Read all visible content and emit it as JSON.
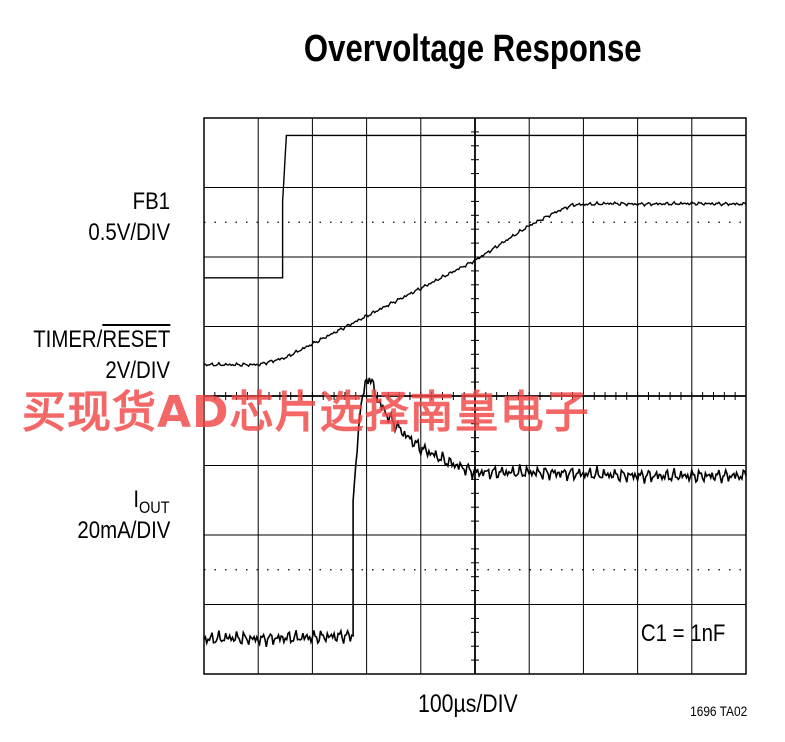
{
  "title": "Overvoltage Response",
  "watermark_text": "买现货AD芯片选择南皇电子",
  "figure_code": "1696 TA02",
  "note": "C1 = 1nF",
  "chart_data": {
    "type": "line",
    "title": "Overvoltage Response",
    "xlabel": "100µs/DIV",
    "x_divisions": 10,
    "y_divisions": 8,
    "grid": true,
    "series": [
      {
        "name": "FB1",
        "scale": "0.5V/DIV",
        "x": [
          0,
          1.45,
          1.45,
          1.52,
          10
        ],
        "y": [
          5.7,
          5.7,
          6.8,
          7.75,
          7.75
        ]
      },
      {
        "name": "TIMER/RESET",
        "scale": "2V/DIV",
        "x": [
          0,
          0.5,
          1.0,
          1.5,
          2.0,
          2.5,
          3.0,
          3.5,
          4.0,
          4.5,
          5.0,
          5.5,
          6.0,
          6.5,
          6.8,
          7.5,
          8.0,
          9.0,
          10
        ],
        "y": [
          4.45,
          4.45,
          4.45,
          4.55,
          4.75,
          4.95,
          5.15,
          5.35,
          5.55,
          5.75,
          5.95,
          6.2,
          6.45,
          6.65,
          6.75,
          6.77,
          6.76,
          6.77,
          6.76
        ]
      },
      {
        "name": "IOUT",
        "scale": "20mA/DIV",
        "x": [
          0,
          0.5,
          1.0,
          1.5,
          2.0,
          2.75,
          2.75,
          2.9,
          3.05,
          3.2,
          3.4,
          3.7,
          4.0,
          4.5,
          5.0,
          5.5,
          6.0,
          7.0,
          8.0,
          9.0,
          10
        ],
        "y": [
          0.5,
          0.52,
          0.5,
          0.52,
          0.53,
          0.55,
          2.5,
          3.95,
          4.3,
          3.95,
          3.7,
          3.45,
          3.25,
          3.05,
          2.9,
          2.9,
          2.9,
          2.88,
          2.85,
          2.85,
          2.85
        ]
      }
    ]
  },
  "labels": {
    "fb1_name": "FB1",
    "fb1_scale": "0.5V/DIV",
    "timer_name": "TIMER/",
    "timer_reset": "RESET",
    "timer_scale": "2V/DIV",
    "iout_main": "I",
    "iout_sub": "OUT",
    "iout_scale": "20mA/DIV"
  }
}
